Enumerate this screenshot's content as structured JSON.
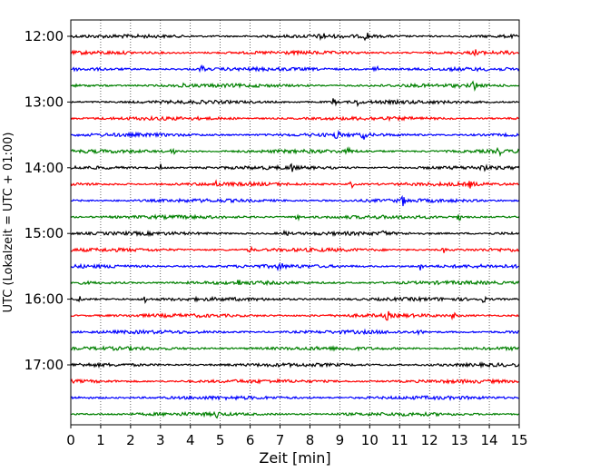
{
  "chart_data": {
    "type": "line",
    "title": "",
    "xlabel": "Zeit  [min]",
    "ylabel": "UTC (Lokalzeit = UTC + 01:00)",
    "xlim": [
      0,
      15
    ],
    "x_ticks": [
      0,
      1,
      2,
      3,
      4,
      5,
      6,
      7,
      8,
      9,
      10,
      11,
      12,
      13,
      14,
      15
    ],
    "y_tick_labels": [
      "12:00",
      "13:00",
      "14:00",
      "15:00",
      "16:00",
      "17:00"
    ],
    "row_interval_minutes": 15,
    "grid": "vertical dotted lines at each minute",
    "colors": [
      "#000000",
      "#ff0000",
      "#0000ff",
      "#008000"
    ],
    "traces": [
      {
        "start": "12:00",
        "color": "#000000",
        "bursts": [
          [
            8.4,
            0.9
          ],
          [
            9.9,
            0.8
          ]
        ]
      },
      {
        "start": "12:15",
        "color": "#ff0000",
        "bursts": [
          [
            13.6,
            0.9
          ]
        ]
      },
      {
        "start": "12:30",
        "color": "#0000ff",
        "bursts": [
          [
            4.4,
            0.7
          ],
          [
            10.2,
            0.9
          ]
        ]
      },
      {
        "start": "12:45",
        "color": "#008000",
        "bursts": [
          [
            3.7,
            0.6
          ],
          [
            13.5,
            0.9
          ]
        ]
      },
      {
        "start": "13:00",
        "color": "#000000",
        "bursts": [
          [
            8.8,
            0.7
          ],
          [
            9.6,
            0.6
          ]
        ]
      },
      {
        "start": "13:15",
        "color": "#ff0000",
        "bursts": []
      },
      {
        "start": "13:30",
        "color": "#0000ff",
        "bursts": [
          [
            8.9,
            0.7
          ],
          [
            9.8,
            0.6
          ]
        ]
      },
      {
        "start": "13:45",
        "color": "#008000",
        "bursts": [
          [
            3.4,
            0.7
          ],
          [
            9.3,
            0.6
          ],
          [
            14.3,
            0.8
          ]
        ]
      },
      {
        "start": "14:00",
        "color": "#000000",
        "bursts": [
          [
            3.0,
            0.6
          ],
          [
            7.4,
            0.7
          ],
          [
            13.8,
            0.7
          ]
        ]
      },
      {
        "start": "14:15",
        "color": "#ff0000",
        "bursts": [
          [
            4.9,
            0.5
          ],
          [
            9.4,
            0.6
          ],
          [
            13.4,
            0.7
          ]
        ]
      },
      {
        "start": "14:30",
        "color": "#0000ff",
        "bursts": [
          [
            11.1,
            0.8
          ]
        ]
      },
      {
        "start": "14:45",
        "color": "#008000",
        "bursts": [
          [
            7.6,
            0.6
          ],
          [
            13.0,
            0.6
          ]
        ]
      },
      {
        "start": "15:00",
        "color": "#000000",
        "bursts": [
          [
            7.2,
            0.6
          ],
          [
            10.5,
            0.6
          ]
        ]
      },
      {
        "start": "15:15",
        "color": "#ff0000",
        "bursts": [
          [
            6.0,
            0.5
          ],
          [
            12.5,
            0.5
          ]
        ]
      },
      {
        "start": "15:30",
        "color": "#0000ff",
        "bursts": [
          [
            1.5,
            0.7
          ],
          [
            7.0,
            0.8
          ],
          [
            11.7,
            0.7
          ]
        ]
      },
      {
        "start": "15:45",
        "color": "#008000",
        "bursts": [
          [
            5.6,
            0.5
          ]
        ]
      },
      {
        "start": "16:00",
        "color": "#000000",
        "bursts": [
          [
            0.3,
            0.5
          ],
          [
            2.5,
            0.7
          ],
          [
            13.8,
            0.5
          ]
        ]
      },
      {
        "start": "16:15",
        "color": "#ff0000",
        "bursts": [
          [
            10.6,
            0.7
          ],
          [
            12.8,
            0.5
          ]
        ]
      },
      {
        "start": "16:30",
        "color": "#0000ff",
        "bursts": [
          [
            11.7,
            0.4
          ]
        ]
      },
      {
        "start": "16:45",
        "color": "#008000",
        "bursts": []
      },
      {
        "start": "17:00",
        "color": "#000000",
        "bursts": []
      },
      {
        "start": "17:15",
        "color": "#ff0000",
        "bursts": []
      },
      {
        "start": "17:30",
        "color": "#0000ff",
        "bursts": []
      },
      {
        "start": "17:45",
        "color": "#008000",
        "bursts": [
          [
            4.9,
            0.6
          ]
        ]
      }
    ]
  }
}
